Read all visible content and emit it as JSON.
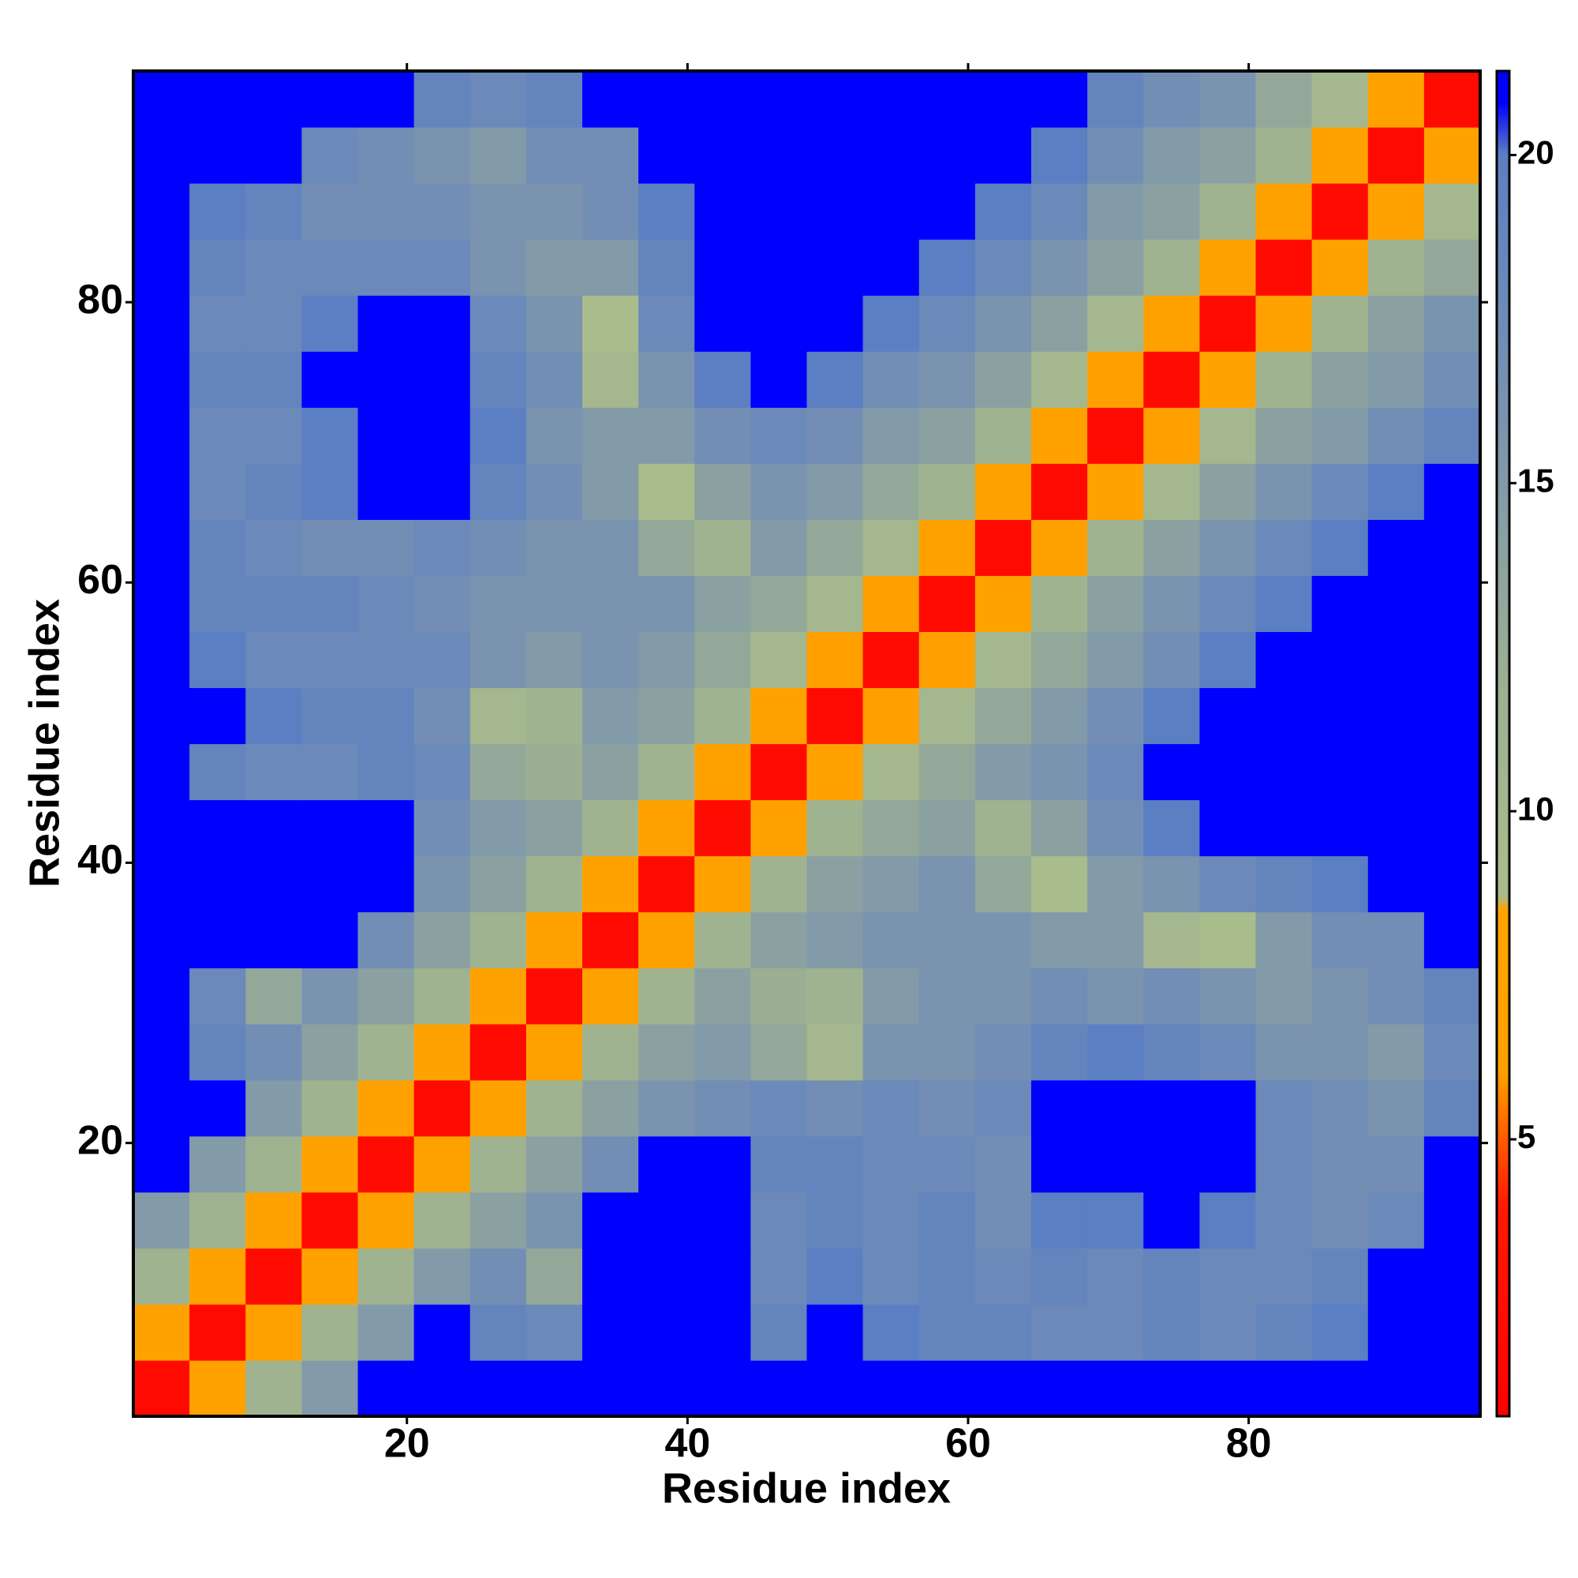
{
  "chart_data": {
    "type": "heatmap",
    "xlabel": "Residue index",
    "ylabel": "Residue index",
    "xlim": [
      0.5,
      96.5
    ],
    "ylim": [
      0.5,
      96.5
    ],
    "xticks": [
      20,
      40,
      60,
      80
    ],
    "yticks": [
      20,
      40,
      60,
      80
    ],
    "x": [
      2.5,
      6.5,
      10.5,
      14.5,
      18.5,
      22.5,
      26.5,
      30.5,
      34.5,
      38.5,
      42.5,
      46.5,
      50.5,
      54.5,
      58.5,
      62.5,
      66.5,
      70.5,
      74.5,
      78.5,
      82.5,
      86.5,
      90.5,
      94.5
    ],
    "y": [
      2.5,
      6.5,
      10.5,
      14.5,
      18.5,
      22.5,
      26.5,
      30.5,
      34.5,
      38.5,
      42.5,
      46.5,
      50.5,
      54.5,
      58.5,
      62.5,
      66.5,
      70.5,
      74.5,
      78.5,
      82.5,
      86.5,
      90.5,
      94.5
    ],
    "z": [
      [
        2,
        7,
        11,
        15,
        22,
        22,
        22,
        22,
        22,
        22,
        22,
        22,
        22,
        22,
        22,
        22,
        22,
        22,
        22,
        22,
        22,
        22,
        22,
        22
      ],
      [
        7,
        2,
        7,
        11,
        15,
        22,
        19,
        18,
        22,
        22,
        22,
        19,
        22,
        20,
        19,
        19,
        18,
        18,
        19,
        18,
        19,
        20,
        22,
        22
      ],
      [
        11,
        7,
        2,
        7,
        11,
        15,
        17,
        13,
        22,
        22,
        22,
        18,
        20,
        18,
        19,
        18,
        19,
        18,
        19,
        18,
        18,
        19,
        22,
        22
      ],
      [
        15,
        11,
        7,
        2,
        7,
        11,
        14,
        16,
        22,
        22,
        22,
        18,
        19,
        18,
        19,
        17,
        20,
        20,
        21,
        20,
        18,
        17,
        18,
        22
      ],
      [
        22,
        15,
        11,
        7,
        2,
        7,
        11,
        14,
        17,
        21,
        21,
        19,
        19,
        18,
        18,
        17,
        22,
        22,
        22,
        22,
        18,
        17,
        17,
        21
      ],
      [
        22,
        22,
        15,
        11,
        7,
        2,
        7,
        11,
        14,
        16,
        17,
        18,
        17,
        18,
        17,
        18,
        22,
        22,
        22,
        22,
        18,
        17,
        16,
        19
      ],
      [
        22,
        19,
        17,
        14,
        11,
        7,
        2,
        7,
        11,
        14,
        15,
        13,
        10,
        16,
        16,
        17,
        19,
        20,
        19,
        18,
        16,
        16,
        15,
        18
      ],
      [
        22,
        18,
        13,
        16,
        14,
        11,
        7,
        2,
        7,
        11,
        14,
        12,
        11,
        15,
        16,
        16,
        17,
        16,
        17,
        16,
        15,
        16,
        17,
        19
      ],
      [
        22,
        22,
        22,
        22,
        17,
        14,
        11,
        7,
        2,
        7,
        11,
        14,
        15,
        16,
        16,
        16,
        15,
        15,
        10,
        9,
        15,
        17,
        17,
        21
      ],
      [
        22,
        22,
        22,
        22,
        21,
        16,
        14,
        11,
        7,
        2,
        7,
        11,
        14,
        15,
        16,
        13,
        9,
        15,
        16,
        18,
        19,
        20,
        21,
        22
      ],
      [
        22,
        22,
        22,
        22,
        21,
        17,
        15,
        14,
        11,
        7,
        2,
        7,
        11,
        13,
        14,
        11,
        14,
        17,
        20,
        21,
        22,
        22,
        22,
        22
      ],
      [
        22,
        19,
        18,
        18,
        19,
        18,
        13,
        12,
        14,
        11,
        7,
        2,
        7,
        10,
        13,
        15,
        16,
        18,
        22,
        22,
        22,
        22,
        22,
        22
      ],
      [
        22,
        22,
        20,
        19,
        19,
        17,
        10,
        11,
        15,
        14,
        11,
        7,
        2,
        6,
        10,
        13,
        15,
        17,
        20,
        22,
        22,
        22,
        22,
        22
      ],
      [
        22,
        20,
        18,
        18,
        18,
        18,
        16,
        15,
        16,
        15,
        13,
        10,
        6,
        2,
        6,
        10,
        13,
        15,
        17,
        20,
        22,
        22,
        22,
        22
      ],
      [
        22,
        19,
        19,
        19,
        18,
        17,
        16,
        16,
        16,
        16,
        14,
        13,
        10,
        6,
        2,
        7,
        11,
        14,
        16,
        18,
        20,
        22,
        22,
        22
      ],
      [
        22,
        19,
        18,
        17,
        17,
        18,
        17,
        16,
        16,
        13,
        11,
        15,
        13,
        10,
        7,
        2,
        7,
        11,
        14,
        16,
        18,
        20,
        22,
        22
      ],
      [
        22,
        18,
        19,
        20,
        22,
        22,
        19,
        17,
        15,
        9,
        14,
        16,
        15,
        13,
        11,
        7,
        2,
        7,
        10,
        14,
        16,
        18,
        20,
        22
      ],
      [
        22,
        18,
        18,
        20,
        22,
        22,
        20,
        16,
        15,
        15,
        17,
        18,
        17,
        15,
        14,
        11,
        7,
        2,
        6,
        10,
        14,
        15,
        17,
        19
      ],
      [
        22,
        19,
        19,
        21,
        22,
        22,
        19,
        17,
        10,
        16,
        20,
        22,
        20,
        17,
        16,
        14,
        10,
        6,
        2,
        7,
        11,
        14,
        15,
        17
      ],
      [
        22,
        18,
        18,
        20,
        22,
        22,
        18,
        16,
        9,
        18,
        21,
        22,
        22,
        20,
        18,
        16,
        14,
        10,
        7,
        2,
        7,
        11,
        14,
        16
      ],
      [
        22,
        19,
        18,
        18,
        18,
        18,
        16,
        15,
        15,
        19,
        22,
        22,
        22,
        22,
        20,
        18,
        16,
        14,
        11,
        7,
        2,
        7,
        11,
        13
      ],
      [
        22,
        20,
        19,
        17,
        17,
        17,
        16,
        16,
        17,
        20,
        22,
        22,
        22,
        22,
        22,
        20,
        18,
        15,
        14,
        11,
        7,
        2,
        7,
        10
      ],
      [
        22,
        22,
        22,
        18,
        17,
        16,
        15,
        17,
        17,
        21,
        22,
        22,
        22,
        22,
        22,
        22,
        20,
        17,
        15,
        14,
        11,
        7,
        2,
        7
      ],
      [
        22,
        22,
        22,
        22,
        21,
        19,
        18,
        19,
        21,
        22,
        22,
        22,
        22,
        22,
        22,
        22,
        22,
        19,
        17,
        16,
        13,
        10,
        7,
        2
      ]
    ],
    "zlim": [
      0.78,
      21.28
    ],
    "zticks": [
      5,
      10,
      15,
      20
    ],
    "colorscale": [
      [
        0.78,
        "#ff0000"
      ],
      [
        4,
        "#ff1a00"
      ],
      [
        5,
        "#ff5a00"
      ],
      [
        6,
        "#ffa000"
      ],
      [
        8.5,
        "#ffa500"
      ],
      [
        8.7,
        "#a9bd8b"
      ],
      [
        12,
        "#9caf93"
      ],
      [
        16,
        "#7a93af"
      ],
      [
        20,
        "#5b7fc2"
      ],
      [
        20.8,
        "#0000ff"
      ]
    ]
  }
}
